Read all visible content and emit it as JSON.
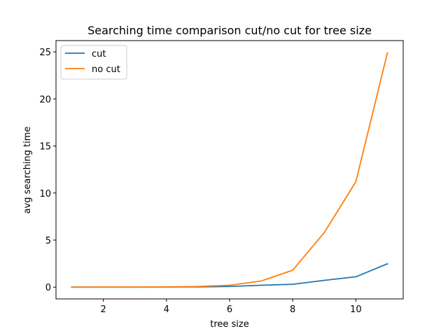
{
  "chart_data": {
    "type": "line",
    "title": "Searching time comparison cut/no cut for tree size",
    "xlabel": "tree size",
    "ylabel": "avg searching time",
    "x": [
      1,
      2,
      3,
      4,
      5,
      6,
      7,
      8,
      9,
      10,
      11
    ],
    "xlim": [
      0.5,
      11.5
    ],
    "ylim": [
      -1.25,
      26.2
    ],
    "xticks": [
      2,
      4,
      6,
      8,
      10
    ],
    "yticks": [
      0,
      5,
      10,
      15,
      20,
      25
    ],
    "grid": false,
    "legend_position": "top-left",
    "series": [
      {
        "name": "cut",
        "color": "#1f77b4",
        "values": [
          0.0,
          0.0,
          0.0,
          0.01,
          0.03,
          0.07,
          0.2,
          0.3,
          0.72,
          1.1,
          2.48
        ]
      },
      {
        "name": "no cut",
        "color": "#ff7f0e",
        "values": [
          0.0,
          0.01,
          0.01,
          0.02,
          0.07,
          0.2,
          0.65,
          1.8,
          5.8,
          11.2,
          24.9
        ]
      }
    ]
  }
}
